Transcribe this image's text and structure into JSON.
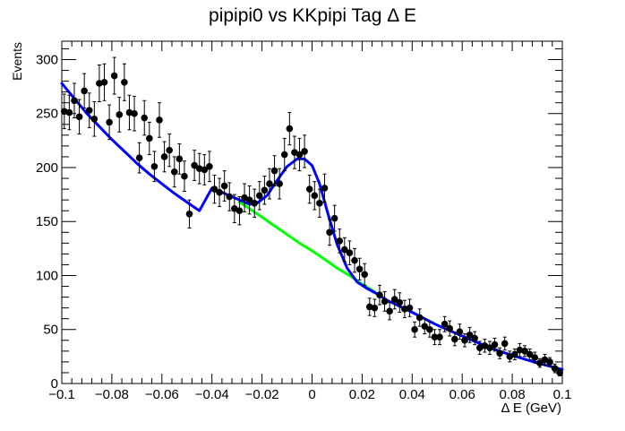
{
  "chart_data": {
    "type": "scatter",
    "title": "pipipi0 vs KKpipi Tag Δ E",
    "xlabel": "Δ E (GeV)",
    "ylabel": "Events",
    "xlim": [
      -0.1,
      0.1
    ],
    "ylim": [
      0,
      317
    ],
    "grid": false,
    "legend": "none",
    "x_ticks": [
      -0.1,
      -0.08,
      -0.06,
      -0.04,
      -0.02,
      0,
      0.02,
      0.04,
      0.06,
      0.08,
      0.1
    ],
    "x_tick_labels": [
      "−0.1",
      "−0.08",
      "−0.06",
      "−0.04",
      "−0.02",
      "0",
      "0.02",
      "0.04",
      "0.06",
      "0.08",
      "0.1"
    ],
    "y_ticks": [
      0,
      50,
      100,
      150,
      200,
      250,
      300
    ],
    "y_tick_labels": [
      "0",
      "50",
      "100",
      "150",
      "200",
      "250",
      "300"
    ],
    "bin_width": 0.002,
    "data_points": {
      "marker": "filled-circle",
      "color": "#000000",
      "x": [
        -0.099,
        -0.097,
        -0.095,
        -0.093,
        -0.091,
        -0.089,
        -0.087,
        -0.085,
        -0.083,
        -0.081,
        -0.079,
        -0.077,
        -0.075,
        -0.073,
        -0.071,
        -0.069,
        -0.067,
        -0.065,
        -0.063,
        -0.061,
        -0.059,
        -0.057,
        -0.055,
        -0.053,
        -0.051,
        -0.049,
        -0.047,
        -0.045,
        -0.043,
        -0.041,
        -0.039,
        -0.037,
        -0.035,
        -0.033,
        -0.031,
        -0.029,
        -0.027,
        -0.025,
        -0.023,
        -0.021,
        -0.019,
        -0.017,
        -0.015,
        -0.013,
        -0.011,
        -0.009,
        -0.007,
        -0.005,
        -0.003,
        -0.001,
        0.001,
        0.003,
        0.005,
        0.007,
        0.009,
        0.011,
        0.013,
        0.015,
        0.017,
        0.019,
        0.021,
        0.023,
        0.025,
        0.027,
        0.029,
        0.031,
        0.033,
        0.035,
        0.037,
        0.039,
        0.041,
        0.043,
        0.045,
        0.047,
        0.049,
        0.051,
        0.053,
        0.055,
        0.057,
        0.059,
        0.061,
        0.063,
        0.065,
        0.067,
        0.069,
        0.071,
        0.073,
        0.075,
        0.077,
        0.079,
        0.081,
        0.083,
        0.085,
        0.087,
        0.089,
        0.091,
        0.093,
        0.095,
        0.097,
        0.099
      ],
      "y": [
        252,
        251,
        262,
        247,
        271,
        253,
        245,
        278,
        279,
        242,
        285,
        249,
        279,
        251,
        250,
        209,
        246,
        227,
        201,
        244,
        210,
        216,
        196,
        208,
        192,
        157,
        202,
        199,
        198,
        201,
        180,
        177,
        183,
        173,
        162,
        160,
        172,
        170,
        167,
        174,
        179,
        185,
        197,
        185,
        212,
        236,
        214,
        212,
        215,
        180,
        174,
        167,
        181,
        140,
        153,
        132,
        124,
        121,
        114,
        106,
        101,
        71,
        70,
        82,
        76,
        67,
        78,
        75,
        69,
        70,
        50,
        61,
        53,
        50,
        43,
        43,
        55,
        51,
        41,
        48,
        40,
        45,
        42,
        33,
        35,
        33,
        36,
        28,
        37,
        25,
        27,
        31,
        30,
        27,
        24,
        19,
        22,
        20,
        14,
        10
      ],
      "err": [
        16,
        16,
        16,
        16,
        16,
        16,
        16,
        17,
        17,
        16,
        17,
        16,
        17,
        16,
        16,
        14,
        16,
        15,
        14,
        16,
        14,
        15,
        14,
        14,
        14,
        13,
        14,
        14,
        14,
        14,
        13,
        13,
        14,
        13,
        13,
        13,
        13,
        13,
        13,
        13,
        13,
        14,
        14,
        14,
        15,
        15,
        15,
        15,
        15,
        13,
        13,
        13,
        13,
        12,
        12,
        11,
        11,
        11,
        11,
        10,
        10,
        8,
        8,
        9,
        9,
        8,
        9,
        9,
        8,
        8,
        7,
        8,
        7,
        7,
        7,
        7,
        7,
        7,
        6,
        7,
        6,
        7,
        6,
        6,
        6,
        6,
        6,
        5,
        6,
        5,
        5,
        6,
        5,
        5,
        5,
        4,
        5,
        4,
        4,
        3
      ]
    },
    "fit_curves": [
      {
        "role": "signal+background",
        "color": "#0000ff",
        "x": [
          -0.1,
          -0.095,
          -0.09,
          -0.085,
          -0.08,
          -0.075,
          -0.07,
          -0.065,
          -0.06,
          -0.055,
          -0.05,
          -0.045,
          -0.04,
          -0.035,
          -0.03,
          -0.025,
          -0.022,
          -0.018,
          -0.014,
          -0.01,
          -0.006,
          -0.003,
          0,
          0.003,
          0.006,
          0.01,
          0.014,
          0.018,
          0.022,
          0.026,
          0.03,
          0.04,
          0.05,
          0.06,
          0.07,
          0.08,
          0.09,
          0.1
        ],
        "y": [
          278,
          264,
          250,
          238,
          226,
          215,
          204,
          194,
          185,
          176,
          168,
          160,
          181,
          176,
          171,
          166,
          167,
          174,
          188,
          201,
          208,
          208,
          202,
          185,
          160,
          129,
          107,
          94,
          88,
          83,
          77,
          66,
          54,
          44,
          34,
          26,
          19,
          13
        ]
      },
      {
        "role": "background",
        "color": "#00ff00",
        "x": [
          -0.029,
          -0.025,
          -0.02,
          -0.015,
          -0.01,
          -0.005,
          0,
          0.005,
          0.01,
          0.015,
          0.02,
          0.025
        ],
        "y": [
          168,
          162,
          154,
          146,
          138,
          130,
          123,
          115,
          107,
          100,
          92,
          85
        ]
      }
    ]
  }
}
